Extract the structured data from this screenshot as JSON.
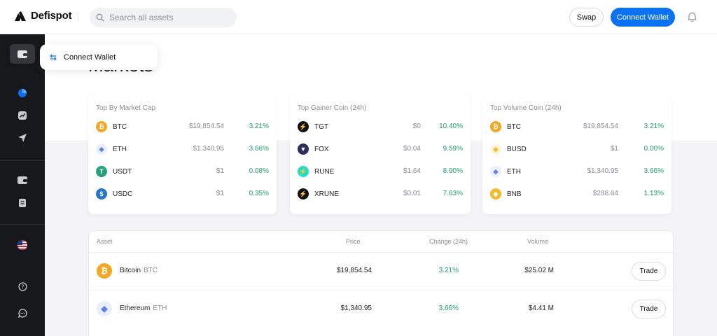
{
  "header": {
    "brand": "Defispot",
    "search": {
      "placeholder": "Search all assets",
      "value": ""
    },
    "swap_label": "Swap",
    "connect_label": "Connect Wallet"
  },
  "tooltip": {
    "label": "Connect Wallet"
  },
  "sidebar": {
    "items": [
      {
        "icon": "wallet-icon",
        "active": true
      },
      {
        "icon": "pie-chart-icon",
        "active": false
      },
      {
        "icon": "chart-up-icon",
        "active": false
      },
      {
        "icon": "send-icon",
        "active": false
      },
      {
        "icon": "wallet-icon",
        "active": false
      },
      {
        "icon": "document-icon",
        "active": false
      },
      {
        "icon": "us-flag-icon",
        "active": false
      },
      {
        "icon": "help-icon",
        "active": false
      },
      {
        "icon": "chat-icon",
        "active": false
      }
    ]
  },
  "page": {
    "title": "Markets"
  },
  "cards": [
    {
      "title": "Top By Market Cap",
      "rows": [
        {
          "symbol": "BTC",
          "price": "$19,854.54",
          "change": "3.21%",
          "icon": "btc-icon",
          "color": "#f5a623",
          "glyph": "₿"
        },
        {
          "symbol": "ETH",
          "price": "$1,340.95",
          "change": "3.66%",
          "icon": "eth-icon",
          "color": "#e8f0fe",
          "glyph": "◆"
        },
        {
          "symbol": "USDT",
          "price": "$1",
          "change": "0.08%",
          "icon": "usdt-icon",
          "color": "#26a17b",
          "glyph": "T"
        },
        {
          "symbol": "USDC",
          "price": "$1",
          "change": "0.35%",
          "icon": "usdc-icon",
          "color": "#2775ca",
          "glyph": "$"
        }
      ]
    },
    {
      "title": "Top Gainer Coin (24h)",
      "rows": [
        {
          "symbol": "TGT",
          "price": "$0",
          "change": "10.40%",
          "icon": "tgt-icon",
          "color": "#111111",
          "glyph": "⚡"
        },
        {
          "symbol": "FOX",
          "price": "$0.04",
          "change": "9.59%",
          "icon": "fox-icon",
          "color": "#2d2f5e",
          "glyph": "▼"
        },
        {
          "symbol": "RUNE",
          "price": "$1.64",
          "change": "8.90%",
          "icon": "rune-icon",
          "color": "#23dcc8",
          "glyph": "⚡"
        },
        {
          "symbol": "XRUNE",
          "price": "$0.01",
          "change": "7.63%",
          "icon": "xrune-icon",
          "color": "#111111",
          "glyph": "⚡"
        }
      ]
    },
    {
      "title": "Top Volume Coin (24h)",
      "rows": [
        {
          "symbol": "BTC",
          "price": "$19,854.54",
          "change": "3.21%",
          "icon": "btc-icon",
          "color": "#f5a623",
          "glyph": "₿"
        },
        {
          "symbol": "BUSD",
          "price": "$1",
          "change": "0.00%",
          "icon": "busd-icon",
          "color": "#fdf6dc",
          "glyph": "◈"
        },
        {
          "symbol": "ETH",
          "price": "$1,340.95",
          "change": "3.66%",
          "icon": "eth-icon",
          "color": "#e8f0fe",
          "glyph": "◆"
        },
        {
          "symbol": "BNB",
          "price": "$288.64",
          "change": "1.13%",
          "icon": "bnb-icon",
          "color": "#f3ba2f",
          "glyph": "◈"
        }
      ]
    }
  ],
  "table": {
    "headers": {
      "asset": "Asset",
      "price": "Price",
      "change": "Change (24h)",
      "volume": "Volume"
    },
    "rows": [
      {
        "name": "Bitcoin",
        "symbol": "BTC",
        "price": "$19,854.54",
        "change": "3.21%",
        "volume": "$25.02 M",
        "trade_label": "Trade",
        "icon": "btc-icon",
        "color": "#f5a623",
        "glyph": "₿"
      },
      {
        "name": "Ethereum",
        "symbol": "ETH",
        "price": "$1,340.95",
        "change": "3.66%",
        "volume": "$4.41 M",
        "trade_label": "Trade",
        "icon": "eth-icon",
        "color": "#e8f0fe",
        "glyph": "◆"
      }
    ]
  },
  "colors": {
    "accent": "#0a72f3",
    "positive": "#1fa36b",
    "sidebar": "#17181b"
  }
}
